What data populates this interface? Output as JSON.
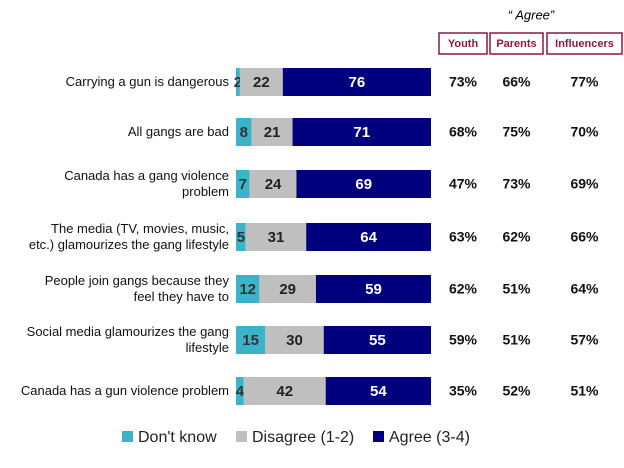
{
  "chart_data": {
    "type": "stacked-bar-horizontal",
    "categories": [
      "Carrying a gun is dangerous",
      "All gangs are bad",
      "Canada has a gang violence\nproblem",
      "The media (TV, movies, music,\netc.) glamourizes the gang lifestyle",
      "People join gangs because they\nfeel they have to",
      "Social media glamourizes the gang\nlifestyle",
      "Canada has a gun violence problem"
    ],
    "series": [
      {
        "name": "Don't know",
        "color": "#3bb4c9",
        "label_color": "#333333",
        "values": [
          2,
          8,
          7,
          5,
          12,
          15,
          4
        ]
      },
      {
        "name": "Disagree (1-2)",
        "color": "#bfbfbf",
        "label_color": "#222222",
        "values": [
          22,
          21,
          24,
          31,
          29,
          30,
          42
        ]
      },
      {
        "name": "Agree (3-4)",
        "color": "#00007f",
        "label_color": "#ffffff",
        "values": [
          76,
          71,
          69,
          64,
          59,
          55,
          54
        ]
      }
    ],
    "xlim": [
      0,
      100
    ],
    "table": {
      "title": "“ Agree”",
      "border_color": "#8b1a3d",
      "columns": [
        "Youth",
        "Parents",
        "Influencers"
      ],
      "rows": [
        [
          "73%",
          "66%",
          "77%"
        ],
        [
          "68%",
          "75%",
          "70%"
        ],
        [
          "47%",
          "73%",
          "69%"
        ],
        [
          "63%",
          "62%",
          "66%"
        ],
        [
          "62%",
          "51%",
          "64%"
        ],
        [
          "59%",
          "51%",
          "57%"
        ],
        [
          "35%",
          "52%",
          "51%"
        ]
      ]
    }
  }
}
